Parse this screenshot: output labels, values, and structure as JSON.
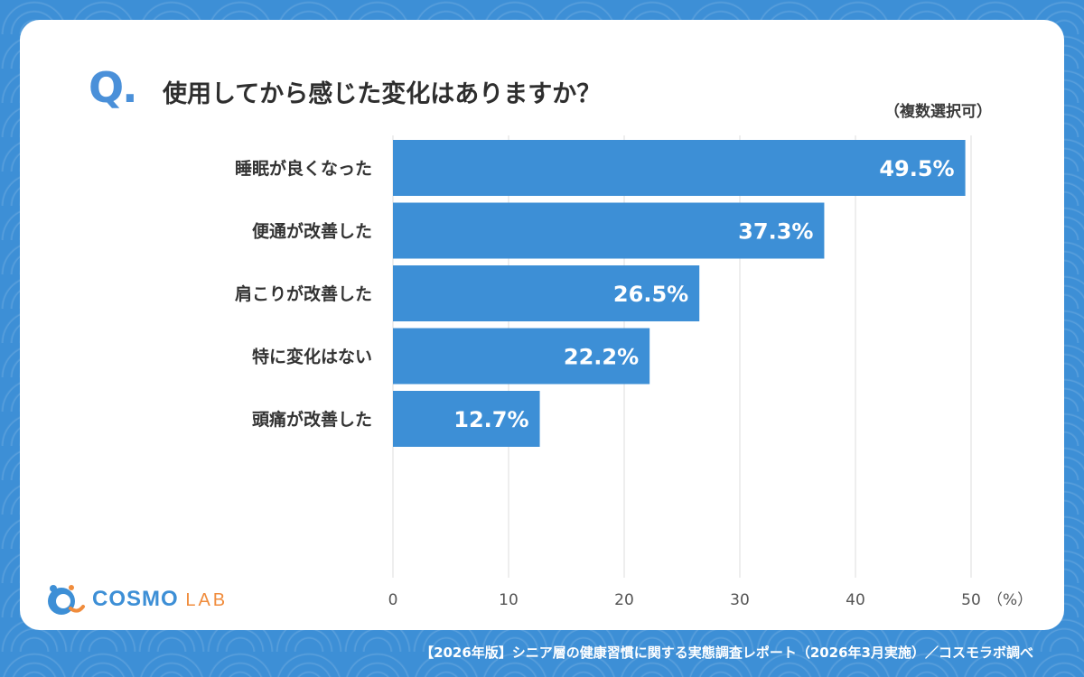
{
  "question": {
    "mark": "Q",
    "mark_dot": ".",
    "text": "使用してから感じた変化はありますか？",
    "note": "（複数選択可）"
  },
  "colors": {
    "bar": "#3d8fd6",
    "bar_label": "#ffffff",
    "grid": "#dcdcdc",
    "background": "#3d8fd6",
    "logo_blue": "#3d8fd6",
    "logo_orange": "#f08c3c"
  },
  "chart_data": {
    "type": "bar",
    "orientation": "horizontal",
    "categories": [
      "睡眠が良くなった",
      "便通が改善した",
      "肩こりが改善した",
      "特に変化はない",
      "頭痛が改善した"
    ],
    "values": [
      49.5,
      37.3,
      26.5,
      22.2,
      12.7
    ],
    "value_labels": [
      "49.5%",
      "37.3%",
      "26.5%",
      "22.2%",
      "12.7%"
    ],
    "xlim": [
      0,
      50
    ],
    "xticks": [
      0,
      10,
      20,
      30,
      40,
      50
    ],
    "x_unit": "（%）",
    "grid": true
  },
  "logo": {
    "cosmo": "COSMO",
    "lab": "LAB",
    "icon": "cosmo-lab-logo-icon"
  },
  "footer": "【2026年版】シニア層の健康習慣に関する実態調査レポート（2026年3月実施）／コスモラボ調べ"
}
